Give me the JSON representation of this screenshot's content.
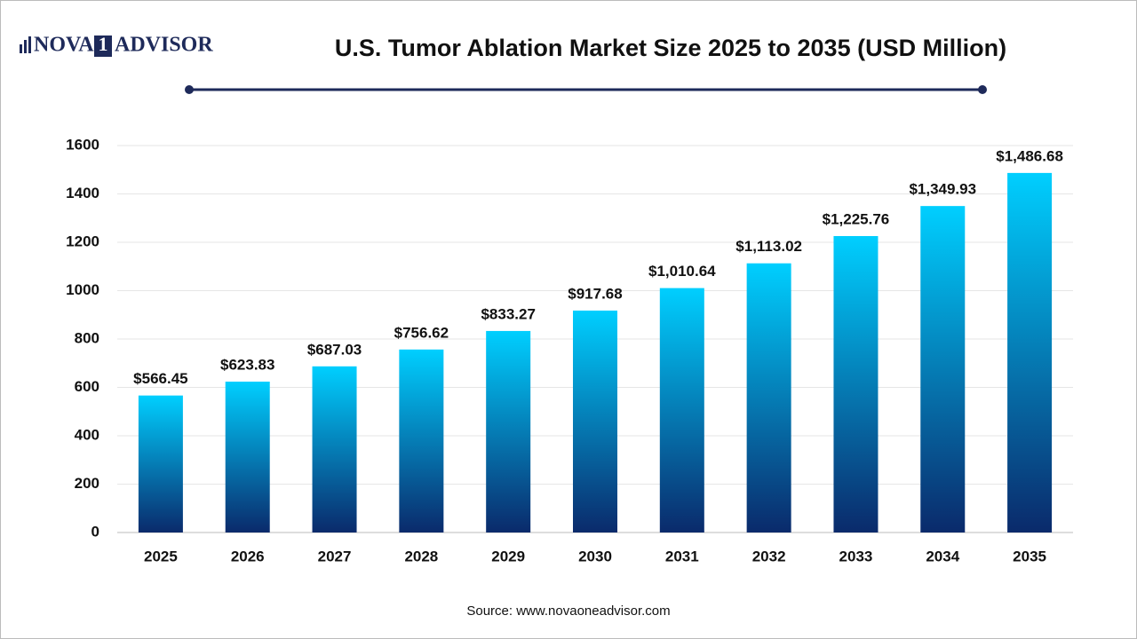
{
  "brand": {
    "parts": [
      "NOVA",
      "1",
      "ADVISOR"
    ]
  },
  "chart_data": {
    "type": "bar",
    "title": "U.S. Tumor Ablation Market Size 2025 to 2035 (USD Million)",
    "categories": [
      "2025",
      "2026",
      "2027",
      "2028",
      "2029",
      "2030",
      "2031",
      "2032",
      "2033",
      "2034",
      "2035"
    ],
    "values": [
      566.45,
      623.83,
      687.03,
      756.62,
      833.27,
      917.68,
      1010.64,
      1113.02,
      1225.76,
      1349.93,
      1486.68
    ],
    "value_labels": [
      "$566.45",
      "$623.83",
      "$687.03",
      "$756.62",
      "$833.27",
      "$917.68",
      "$1,010.64",
      "$1,113.02",
      "$1,225.76",
      "$1,349.93",
      "$1,486.68"
    ],
    "gradient": {
      "top": "#00cfff",
      "bottom": "#0a2a6b"
    },
    "ylim": [
      0,
      1600
    ],
    "yticks": [
      0,
      200,
      400,
      600,
      800,
      1000,
      1200,
      1400,
      1600
    ],
    "grid": true,
    "source": "Source: www.novaoneadvisor.com"
  }
}
